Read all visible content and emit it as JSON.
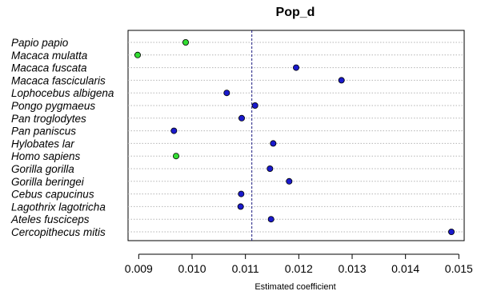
{
  "chart_data": {
    "type": "scatter",
    "title": "Pop_d",
    "xlabel": "Estimated coefficient",
    "ylabel": "",
    "xlim": [
      0.0088,
      0.0151
    ],
    "xticks": [
      0.009,
      0.01,
      0.011,
      0.012,
      0.013,
      0.014,
      0.015
    ],
    "xtick_labels": [
      "0.009",
      "0.010",
      "0.011",
      "0.012",
      "0.013",
      "0.014",
      "0.015"
    ],
    "reference_line": 0.01112,
    "grid": "horizontal dotted",
    "colors": {
      "blue": "#1a1acc",
      "green": "#33dd33",
      "ref_line": "#1a1a80"
    },
    "points": [
      {
        "label": "Papio papio",
        "value": 0.00988,
        "color": "green"
      },
      {
        "label": "Macaca mulatta",
        "value": 0.00898,
        "color": "green"
      },
      {
        "label": "Macaca fuscata",
        "value": 0.01195,
        "color": "blue"
      },
      {
        "label": "Macaca fascicularis",
        "value": 0.0128,
        "color": "blue"
      },
      {
        "label": "Lophocebus albigena",
        "value": 0.01065,
        "color": "blue"
      },
      {
        "label": "Pongo pygmaeus",
        "value": 0.01118,
        "color": "blue"
      },
      {
        "label": "Pan troglodytes",
        "value": 0.01093,
        "color": "blue"
      },
      {
        "label": "Pan paniscus",
        "value": 0.00966,
        "color": "blue"
      },
      {
        "label": "Hylobates lar",
        "value": 0.01152,
        "color": "blue"
      },
      {
        "label": "Homo sapiens",
        "value": 0.0097,
        "color": "green"
      },
      {
        "label": "Gorilla gorilla",
        "value": 0.01146,
        "color": "blue"
      },
      {
        "label": "Gorilla beringei",
        "value": 0.01182,
        "color": "blue"
      },
      {
        "label": "Cebus capucinus",
        "value": 0.01092,
        "color": "blue"
      },
      {
        "label": "Lagothrix lagotricha",
        "value": 0.01091,
        "color": "blue"
      },
      {
        "label": "Ateles fusciceps",
        "value": 0.01148,
        "color": "blue"
      },
      {
        "label": "Cercopithecus mitis",
        "value": 0.01486,
        "color": "blue"
      }
    ]
  }
}
